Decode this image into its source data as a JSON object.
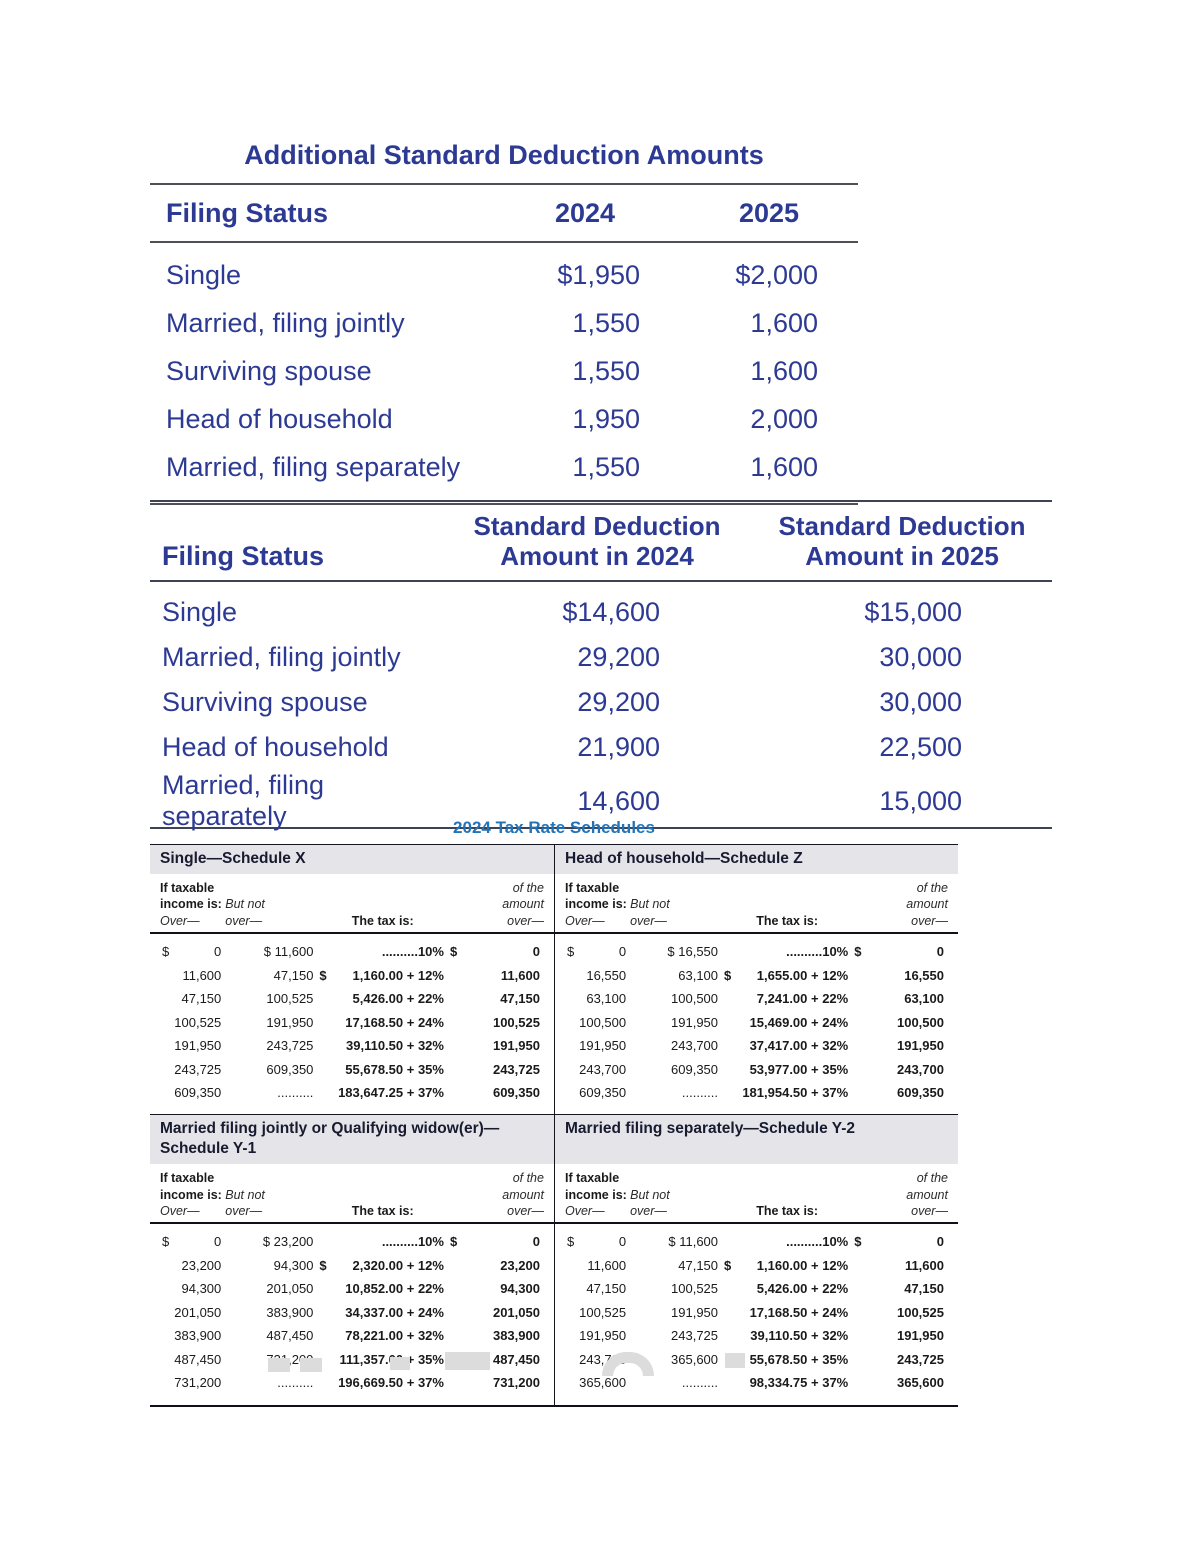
{
  "colors": {
    "navy_text": "#2d3a93",
    "schedules_title_blue": "#2273b8",
    "schedule_bar_bg": "#e5e5e9",
    "rule_dark": "#3c4355",
    "body_text": "#1a1a1a",
    "watermark_gray": "#dcdcdc",
    "page_bg": "#ffffff"
  },
  "additional_deduction_table": {
    "title": "Additional Standard Deduction Amounts",
    "columns": [
      "Filing Status",
      "2024",
      "2025"
    ],
    "rows": [
      [
        "Single",
        "$1,950",
        "$2,000"
      ],
      [
        "Married, filing jointly",
        "1,550",
        "1,600"
      ],
      [
        "Surviving spouse",
        "1,550",
        "1,600"
      ],
      [
        "Head of household",
        "1,950",
        "2,000"
      ],
      [
        "Married, filing separately",
        "1,550",
        "1,600"
      ]
    ]
  },
  "standard_deduction_table": {
    "col1_header": "Filing Status",
    "col2_lines": [
      "Standard Deduction",
      "Amount in 2024"
    ],
    "col3_lines": [
      "Standard Deduction",
      "Amount in 2025"
    ],
    "rows": [
      [
        "Single",
        "$14,600",
        "$15,000"
      ],
      [
        "Married, filing jointly",
        "29,200",
        "30,000"
      ],
      [
        "Surviving spouse",
        "29,200",
        "30,000"
      ],
      [
        "Head of household",
        "21,900",
        "22,500"
      ],
      [
        "Married, filing separately",
        "14,600",
        "15,000"
      ]
    ]
  },
  "tax_schedules": {
    "title": "2024 Tax Rate Schedules",
    "column_headers": {
      "col1_bold_lines": [
        "If taxable",
        "income is:"
      ],
      "col1_italic_line": "Over—",
      "col2_italic_lines": [
        "But not",
        "over—"
      ],
      "col3_bold": "The tax is:",
      "col4_italic_lines": [
        "of the",
        "amount",
        "over—"
      ]
    },
    "schedules": [
      {
        "title_lines": [
          "Single—Schedule X"
        ],
        "rows": [
          [
            {
              "p": "$",
              "v": "0"
            },
            {
              "v": "$ 11,600"
            },
            {
              "v": "..........10%"
            },
            {
              "p": "$",
              "v": "0"
            }
          ],
          [
            {
              "v": "11,600"
            },
            {
              "v": "47,150"
            },
            {
              "p": "$",
              "v": "1,160.00 + 12%"
            },
            {
              "v": "11,600"
            }
          ],
          [
            {
              "v": "47,150"
            },
            {
              "v": "100,525"
            },
            {
              "v": "5,426.00 + 22%"
            },
            {
              "v": "47,150"
            }
          ],
          [
            {
              "v": "100,525"
            },
            {
              "v": "191,950"
            },
            {
              "v": "17,168.50 + 24%"
            },
            {
              "v": "100,525"
            }
          ],
          [
            {
              "v": "191,950"
            },
            {
              "v": "243,725"
            },
            {
              "v": "39,110.50 + 32%"
            },
            {
              "v": "191,950"
            }
          ],
          [
            {
              "v": "243,725"
            },
            {
              "v": "609,350"
            },
            {
              "v": "55,678.50 + 35%"
            },
            {
              "v": "243,725"
            }
          ],
          [
            {
              "v": "609,350"
            },
            {
              "v": ".........."
            },
            {
              "v": "183,647.25 + 37%"
            },
            {
              "v": "609,350"
            }
          ]
        ]
      },
      {
        "title_lines": [
          "Head of household—Schedule Z"
        ],
        "rows": [
          [
            {
              "p": "$",
              "v": "0"
            },
            {
              "v": "$ 16,550"
            },
            {
              "v": "..........10%"
            },
            {
              "p": "$",
              "v": "0"
            }
          ],
          [
            {
              "v": "16,550"
            },
            {
              "v": "63,100"
            },
            {
              "p": "$",
              "v": "1,655.00 + 12%"
            },
            {
              "v": "16,550"
            }
          ],
          [
            {
              "v": "63,100"
            },
            {
              "v": "100,500"
            },
            {
              "v": "7,241.00 + 22%"
            },
            {
              "v": "63,100"
            }
          ],
          [
            {
              "v": "100,500"
            },
            {
              "v": "191,950"
            },
            {
              "v": "15,469.00 + 24%"
            },
            {
              "v": "100,500"
            }
          ],
          [
            {
              "v": "191,950"
            },
            {
              "v": "243,700"
            },
            {
              "v": "37,417.00 + 32%"
            },
            {
              "v": "191,950"
            }
          ],
          [
            {
              "v": "243,700"
            },
            {
              "v": "609,350"
            },
            {
              "v": "53,977.00 + 35%"
            },
            {
              "v": "243,700"
            }
          ],
          [
            {
              "v": "609,350"
            },
            {
              "v": ".........."
            },
            {
              "v": "181,954.50 + 37%"
            },
            {
              "v": "609,350"
            }
          ]
        ]
      },
      {
        "title_lines": [
          "Married filing jointly or Qualifying widow(er)—",
          "Schedule Y-1"
        ],
        "rows": [
          [
            {
              "p": "$",
              "v": "0"
            },
            {
              "v": "$ 23,200"
            },
            {
              "v": "..........10%"
            },
            {
              "p": "$",
              "v": "0"
            }
          ],
          [
            {
              "v": "23,200"
            },
            {
              "v": "94,300"
            },
            {
              "p": "$",
              "v": "2,320.00 + 12%"
            },
            {
              "v": "23,200"
            }
          ],
          [
            {
              "v": "94,300"
            },
            {
              "v": "201,050"
            },
            {
              "v": "10,852.00 + 22%"
            },
            {
              "v": "94,300"
            }
          ],
          [
            {
              "v": "201,050"
            },
            {
              "v": "383,900"
            },
            {
              "v": "34,337.00 + 24%"
            },
            {
              "v": "201,050"
            }
          ],
          [
            {
              "v": "383,900"
            },
            {
              "v": "487,450"
            },
            {
              "v": "78,221.00 + 32%"
            },
            {
              "v": "383,900"
            }
          ],
          [
            {
              "v": "487,450"
            },
            {
              "v": "731,200"
            },
            {
              "v": "111,357.00 + 35%"
            },
            {
              "v": "487,450"
            }
          ],
          [
            {
              "v": "731,200"
            },
            {
              "v": ".........."
            },
            {
              "v": "196,669.50 + 37%"
            },
            {
              "v": "731,200"
            }
          ]
        ]
      },
      {
        "title_lines": [
          "Married filing separately—Schedule Y-2"
        ],
        "rows": [
          [
            {
              "p": "$",
              "v": "0"
            },
            {
              "v": "$ 11,600"
            },
            {
              "v": "..........10%"
            },
            {
              "p": "$",
              "v": "0"
            }
          ],
          [
            {
              "v": "11,600"
            },
            {
              "v": "47,150"
            },
            {
              "p": "$",
              "v": "1,160.00 + 12%"
            },
            {
              "v": "11,600"
            }
          ],
          [
            {
              "v": "47,150"
            },
            {
              "v": "100,525"
            },
            {
              "v": "5,426.00 + 22%"
            },
            {
              "v": "47,150"
            }
          ],
          [
            {
              "v": "100,525"
            },
            {
              "v": "191,950"
            },
            {
              "v": "17,168.50 + 24%"
            },
            {
              "v": "100,525"
            }
          ],
          [
            {
              "v": "191,950"
            },
            {
              "v": "243,725"
            },
            {
              "v": "39,110.50 + 32%"
            },
            {
              "v": "191,950"
            }
          ],
          [
            {
              "v": "243,725"
            },
            {
              "v": "365,600"
            },
            {
              "v": "55,678.50 + 35%"
            },
            {
              "v": "243,725"
            }
          ],
          [
            {
              "v": "365,600"
            },
            {
              "v": ".........."
            },
            {
              "v": "98,334.75 + 37%"
            },
            {
              "v": "365,600"
            }
          ]
        ]
      }
    ]
  }
}
